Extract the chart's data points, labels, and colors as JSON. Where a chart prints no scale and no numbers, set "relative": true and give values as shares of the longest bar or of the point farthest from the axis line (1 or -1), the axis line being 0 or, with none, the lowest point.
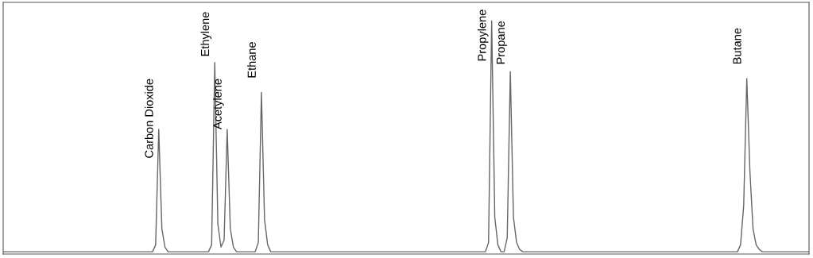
{
  "chart_data": {
    "type": "line",
    "relative": true,
    "tick_labels": false,
    "grid": false,
    "legend": false,
    "categories": [
      null,
      null,
      null,
      null,
      null,
      null,
      null,
      null,
      null,
      null,
      null,
      null,
      null,
      null,
      null,
      null,
      null,
      null,
      null,
      null,
      null,
      null,
      null,
      null,
      null,
      null,
      null,
      null,
      null,
      null,
      null,
      null,
      null,
      null,
      null,
      null,
      null,
      null,
      null,
      null,
      null,
      null,
      null,
      null,
      null,
      null,
      null,
      null,
      null,
      null,
      null,
      null,
      null,
      null,
      null,
      null,
      null,
      null,
      null,
      null,
      null,
      null,
      null,
      null,
      null,
      null,
      null,
      null,
      null,
      null,
      null,
      null,
      null,
      null,
      null,
      null,
      null,
      null,
      null,
      null,
      null,
      null,
      null,
      null,
      null,
      null,
      null,
      null,
      null,
      null,
      null,
      null,
      null,
      null,
      null,
      null,
      null,
      null,
      null,
      null,
      null,
      null,
      null,
      null,
      null,
      null,
      null,
      null,
      null,
      null,
      null,
      null,
      null,
      null,
      null,
      null,
      null,
      null,
      null,
      null,
      null,
      null,
      null,
      null,
      null,
      null,
      null,
      null,
      null,
      null,
      null,
      null,
      null,
      null,
      null,
      null,
      null,
      null,
      null,
      null,
      null,
      null,
      null,
      null,
      null,
      null,
      null,
      null,
      null,
      null,
      null,
      null,
      null,
      null,
      null,
      null,
      null,
      null,
      null,
      null,
      null,
      null,
      null,
      null,
      null,
      null,
      null,
      null,
      null,
      null,
      null,
      null,
      null,
      null,
      null,
      null,
      null,
      null,
      null,
      null,
      null,
      null,
      null,
      null,
      null,
      null,
      null,
      null,
      null,
      null,
      null,
      null,
      null,
      null,
      null,
      null,
      null,
      null,
      null,
      null,
      null,
      null,
      null,
      null,
      null,
      null,
      null,
      null,
      null,
      null,
      null,
      null,
      null,
      null,
      null,
      null,
      null,
      null,
      null,
      null,
      null,
      null,
      null,
      null,
      null,
      null,
      null,
      null,
      null,
      null,
      null,
      null,
      null,
      null,
      null,
      null,
      null,
      null,
      null,
      null,
      null,
      null,
      null,
      null,
      null,
      null,
      null,
      null,
      null,
      null,
      null,
      null,
      null,
      null,
      null,
      null,
      null,
      null,
      null,
      null
    ],
    "series": [
      {
        "color": "#666666",
        "values": [
          0,
          0,
          0,
          0,
          0,
          0,
          0,
          0,
          0,
          0,
          0,
          0,
          0,
          0,
          0,
          0,
          0,
          0,
          0,
          0,
          0,
          0,
          0,
          0,
          0,
          0,
          0,
          0,
          0,
          0,
          0,
          0,
          0,
          0,
          0,
          0,
          0,
          0,
          0,
          0,
          0,
          0,
          0,
          0,
          0,
          0,
          0,
          0,
          0,
          0.03,
          0.53,
          0.1,
          0.02,
          0,
          0,
          0,
          0,
          0,
          0,
          0,
          0,
          0,
          0,
          0,
          0,
          0,
          0,
          0.03,
          0.82,
          0.12,
          0.02,
          0.05,
          0.53,
          0.1,
          0.02,
          0,
          0,
          0,
          0,
          0,
          0,
          0,
          0.04,
          0.69,
          0.14,
          0.03,
          0,
          0,
          0,
          0,
          0,
          0,
          0,
          0,
          0,
          0,
          0,
          0,
          0,
          0,
          0,
          0,
          0,
          0,
          0,
          0,
          0,
          0,
          0,
          0,
          0,
          0,
          0,
          0,
          0,
          0,
          0,
          0,
          0,
          0,
          0,
          0,
          0,
          0,
          0,
          0,
          0,
          0,
          0,
          0,
          0,
          0,
          0,
          0,
          0,
          0,
          0,
          0,
          0,
          0,
          0,
          0,
          0,
          0,
          0,
          0,
          0,
          0,
          0,
          0,
          0,
          0,
          0,
          0,
          0,
          0,
          0.04,
          1,
          0.15,
          0.03,
          0,
          0,
          0.06,
          0.78,
          0.15,
          0.04,
          0.01,
          0,
          0,
          0,
          0,
          0,
          0,
          0,
          0,
          0,
          0,
          0,
          0,
          0,
          0,
          0,
          0,
          0,
          0,
          0,
          0,
          0,
          0,
          0,
          0,
          0,
          0,
          0,
          0,
          0,
          0,
          0,
          0,
          0,
          0,
          0,
          0,
          0,
          0,
          0,
          0,
          0,
          0,
          0,
          0,
          0,
          0,
          0,
          0,
          0,
          0,
          0,
          0,
          0,
          0,
          0,
          0,
          0,
          0,
          0,
          0,
          0,
          0,
          0,
          0,
          0,
          0,
          0,
          0,
          0,
          0,
          0.03,
          0.2,
          0.75,
          0.35,
          0.1,
          0.03,
          0.01,
          0,
          0,
          0,
          0,
          0,
          0,
          0,
          0,
          0,
          0,
          0,
          0,
          0,
          0,
          0,
          0
        ]
      }
    ],
    "annotations": [
      "Carbon Dioxide",
      "Ethylene",
      "Acetylene",
      "Ethane",
      "Propylene",
      "Propane",
      "Butane"
    ]
  }
}
